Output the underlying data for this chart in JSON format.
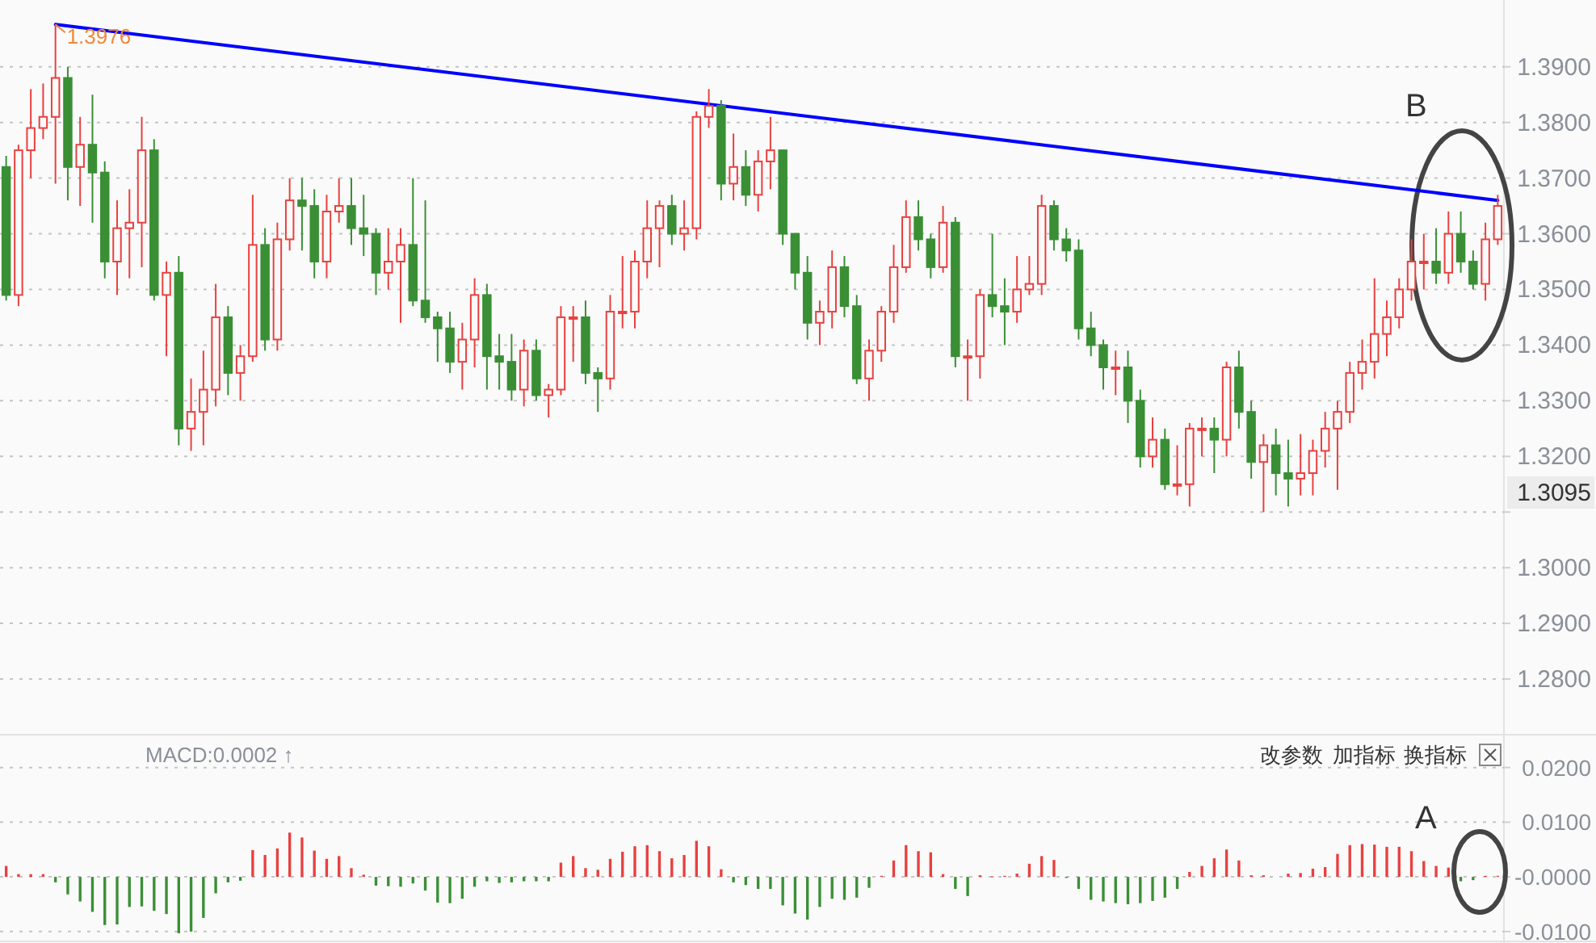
{
  "chart_data": [
    {
      "type": "candlestick",
      "tick_labels": "y",
      "grid": "y",
      "categories": [
        null,
        null,
        null,
        null,
        null,
        null,
        null,
        null,
        null,
        null,
        null,
        null,
        null,
        null,
        null,
        null,
        null,
        null,
        null,
        null,
        null,
        null,
        null,
        null,
        null,
        null,
        null,
        null,
        null,
        null,
        null,
        null,
        null,
        null,
        null,
        null,
        null,
        null,
        null,
        null,
        null,
        null,
        null,
        null,
        null,
        null,
        null,
        null,
        null,
        null,
        null,
        null,
        null,
        null,
        null,
        null,
        null,
        null,
        null,
        null,
        null,
        null,
        null,
        null,
        null,
        null,
        null,
        null,
        null,
        null,
        null,
        null,
        null,
        null,
        null,
        null,
        null,
        null,
        null,
        null,
        null,
        null,
        null,
        null,
        null,
        null,
        null,
        null,
        null,
        null,
        null,
        null,
        null,
        null,
        null,
        null,
        null,
        null,
        null,
        null,
        null,
        null,
        null,
        null,
        null,
        null,
        null,
        null,
        null,
        null,
        null,
        null,
        null,
        null,
        null,
        null,
        null,
        null,
        null,
        null,
        null,
        null
      ],
      "colors": [
        "#3a8f35",
        "#e8413f",
        "#e8413f",
        "#e8413f",
        "#e8413f",
        "#3a8f35",
        "#e8413f",
        "#3a8f35",
        "#3a8f35",
        "#e8413f",
        "#e8413f",
        "#e8413f",
        "#3a8f35",
        "#e8413f",
        "#3a8f35",
        "#e8413f",
        "#e8413f",
        "#e8413f",
        "#3a8f35",
        "#e8413f",
        "#e8413f",
        "#3a8f35",
        "#e8413f",
        "#e8413f",
        "#3a8f35",
        "#3a8f35",
        "#e8413f",
        "#e8413f",
        "#3a8f35",
        "#3a8f35",
        "#3a8f35",
        "#e8413f",
        "#e8413f",
        "#3a8f35",
        "#3a8f35",
        "#3a8f35",
        "#3a8f35",
        "#e8413f",
        "#e8413f",
        "#3a8f35",
        "#3a8f35",
        "#3a8f35",
        "#e8413f",
        "#3a8f35",
        "#e8413f",
        "#e8413f",
        "#e8413f",
        "#3a8f35",
        "#3a8f35",
        "#e8413f",
        "#e8413f",
        "#e8413f",
        "#e8413f",
        "#e8413f",
        "#3a8f35",
        "#e8413f",
        "#e8413f",
        "#e8413f",
        "#3a8f35",
        "#e8413f",
        "#3a8f35",
        "#e8413f",
        "#e8413f",
        "#3a8f35",
        "#3a8f35",
        "#3a8f35",
        "#e8413f",
        "#e8413f",
        "#3a8f35",
        "#3a8f35",
        "#e8413f",
        "#e8413f",
        "#e8413f",
        "#e8413f",
        "#3a8f35",
        "#3a8f35",
        "#e8413f",
        "#3a8f35",
        "#e8413f",
        "#e8413f",
        "#3a8f35",
        "#3a8f35",
        "#e8413f",
        "#e8413f",
        "#e8413f",
        "#3a8f35",
        "#3a8f35",
        "#3a8f35",
        "#3a8f35",
        "#3a8f35",
        "#e8413f",
        "#3a8f35",
        "#3a8f35",
        "#e8413f",
        "#3a8f35",
        "#e8413f",
        "#e8413f",
        "#e8413f",
        "#3a8f35",
        "#e8413f",
        "#3a8f35",
        "#3a8f35",
        "#e8413f",
        "#3a8f35",
        "#3a8f35",
        "#e8413f",
        "#e8413f",
        "#e8413f",
        "#e8413f",
        "#e8413f",
        "#e8413f",
        "#e8413f",
        "#e8413f",
        "#e8413f",
        "#e8413f",
        "#e8413f",
        "#3a8f35",
        "#e8413f",
        "#3a8f35",
        "#3a8f35",
        "#e8413f",
        "#e8413f"
      ],
      "ylim": [
        1.27,
        1.402
      ],
      "yticks": [
        {
          "value": 1.28,
          "label": "1.2800"
        },
        {
          "value": 1.29,
          "label": "1.2900"
        },
        {
          "value": 1.3,
          "label": "1.3000"
        },
        {
          "value": 1.31,
          "label": null
        },
        {
          "value": 1.32,
          "label": "1.3200"
        },
        {
          "value": 1.33,
          "label": "1.3300"
        },
        {
          "value": 1.34,
          "label": "1.3400"
        },
        {
          "value": 1.35,
          "label": "1.3500"
        },
        {
          "value": 1.36,
          "label": "1.3600"
        },
        {
          "value": 1.37,
          "label": "1.3700"
        },
        {
          "value": 1.38,
          "label": "1.3800"
        },
        {
          "value": 1.39,
          "label": "1.3900"
        }
      ],
      "ohlc": [
        [
          1.372,
          1.374,
          1.348,
          1.349
        ],
        [
          1.349,
          1.376,
          1.347,
          1.375
        ],
        [
          1.375,
          1.386,
          1.37,
          1.379
        ],
        [
          1.379,
          1.387,
          1.377,
          1.381
        ],
        [
          1.381,
          1.3976,
          1.369,
          1.388
        ],
        [
          1.388,
          1.39,
          1.366,
          1.372
        ],
        [
          1.372,
          1.381,
          1.365,
          1.376
        ],
        [
          1.376,
          1.385,
          1.362,
          1.371
        ],
        [
          1.371,
          1.373,
          1.352,
          1.355
        ],
        [
          1.355,
          1.366,
          1.349,
          1.361
        ],
        [
          1.361,
          1.368,
          1.352,
          1.362
        ],
        [
          1.362,
          1.381,
          1.354,
          1.375
        ],
        [
          1.375,
          1.377,
          1.348,
          1.349
        ],
        [
          1.349,
          1.355,
          1.338,
          1.353
        ],
        [
          1.353,
          1.356,
          1.322,
          1.325
        ],
        [
          1.325,
          1.334,
          1.321,
          1.328
        ],
        [
          1.328,
          1.339,
          1.322,
          1.332
        ],
        [
          1.332,
          1.351,
          1.329,
          1.345
        ],
        [
          1.345,
          1.347,
          1.331,
          1.335
        ],
        [
          1.335,
          1.34,
          1.33,
          1.338
        ],
        [
          1.338,
          1.367,
          1.337,
          1.358
        ],
        [
          1.358,
          1.361,
          1.339,
          1.341
        ],
        [
          1.341,
          1.362,
          1.339,
          1.359
        ],
        [
          1.359,
          1.37,
          1.357,
          1.366
        ],
        [
          1.366,
          1.37,
          1.357,
          1.365
        ],
        [
          1.365,
          1.368,
          1.352,
          1.355
        ],
        [
          1.355,
          1.367,
          1.352,
          1.364
        ],
        [
          1.364,
          1.37,
          1.362,
          1.365
        ],
        [
          1.365,
          1.37,
          1.358,
          1.361
        ],
        [
          1.361,
          1.367,
          1.356,
          1.36
        ],
        [
          1.36,
          1.361,
          1.349,
          1.353
        ],
        [
          1.353,
          1.361,
          1.35,
          1.355
        ],
        [
          1.355,
          1.361,
          1.344,
          1.358
        ],
        [
          1.358,
          1.37,
          1.347,
          1.348
        ],
        [
          1.348,
          1.366,
          1.344,
          1.345
        ],
        [
          1.345,
          1.346,
          1.337,
          1.343
        ],
        [
          1.343,
          1.346,
          1.335,
          1.337
        ],
        [
          1.337,
          1.344,
          1.332,
          1.341
        ],
        [
          1.341,
          1.352,
          1.336,
          1.349
        ],
        [
          1.349,
          1.351,
          1.332,
          1.338
        ],
        [
          1.338,
          1.342,
          1.332,
          1.337
        ],
        [
          1.337,
          1.342,
          1.33,
          1.332
        ],
        [
          1.332,
          1.341,
          1.329,
          1.339
        ],
        [
          1.339,
          1.341,
          1.33,
          1.331
        ],
        [
          1.331,
          1.333,
          1.327,
          1.332
        ],
        [
          1.332,
          1.347,
          1.331,
          1.345
        ],
        [
          1.345,
          1.347,
          1.337,
          1.345
        ],
        [
          1.345,
          1.348,
          1.333,
          1.335
        ],
        [
          1.335,
          1.336,
          1.328,
          1.334
        ],
        [
          1.334,
          1.349,
          1.332,
          1.346
        ],
        [
          1.346,
          1.356,
          1.343,
          1.346
        ],
        [
          1.346,
          1.357,
          1.343,
          1.355
        ],
        [
          1.355,
          1.366,
          1.352,
          1.361
        ],
        [
          1.361,
          1.366,
          1.354,
          1.365
        ],
        [
          1.365,
          1.367,
          1.358,
          1.36
        ],
        [
          1.36,
          1.366,
          1.357,
          1.361
        ],
        [
          1.361,
          1.382,
          1.359,
          1.381
        ],
        [
          1.381,
          1.386,
          1.379,
          1.383
        ],
        [
          1.383,
          1.384,
          1.366,
          1.369
        ],
        [
          1.369,
          1.378,
          1.366,
          1.372
        ],
        [
          1.372,
          1.375,
          1.365,
          1.367
        ],
        [
          1.367,
          1.375,
          1.364,
          1.373
        ],
        [
          1.373,
          1.381,
          1.368,
          1.375
        ],
        [
          1.375,
          1.375,
          1.358,
          1.36
        ],
        [
          1.36,
          1.36,
          1.35,
          1.353
        ],
        [
          1.353,
          1.356,
          1.341,
          1.344
        ],
        [
          1.344,
          1.348,
          1.34,
          1.346
        ],
        [
          1.346,
          1.357,
          1.343,
          1.354
        ],
        [
          1.354,
          1.356,
          1.345,
          1.347
        ],
        [
          1.347,
          1.349,
          1.333,
          1.334
        ],
        [
          1.334,
          1.341,
          1.33,
          1.339
        ],
        [
          1.339,
          1.347,
          1.337,
          1.346
        ],
        [
          1.346,
          1.358,
          1.344,
          1.354
        ],
        [
          1.354,
          1.366,
          1.353,
          1.363
        ],
        [
          1.363,
          1.366,
          1.357,
          1.359
        ],
        [
          1.359,
          1.36,
          1.352,
          1.354
        ],
        [
          1.354,
          1.365,
          1.353,
          1.362
        ],
        [
          1.362,
          1.363,
          1.336,
          1.338
        ],
        [
          1.338,
          1.341,
          1.33,
          1.338
        ],
        [
          1.338,
          1.35,
          1.334,
          1.349
        ],
        [
          1.349,
          1.36,
          1.345,
          1.347
        ],
        [
          1.347,
          1.352,
          1.34,
          1.346
        ],
        [
          1.346,
          1.356,
          1.344,
          1.35
        ],
        [
          1.35,
          1.356,
          1.349,
          1.351
        ],
        [
          1.351,
          1.367,
          1.349,
          1.365
        ],
        [
          1.365,
          1.366,
          1.357,
          1.359
        ],
        [
          1.359,
          1.361,
          1.355,
          1.357
        ],
        [
          1.357,
          1.359,
          1.341,
          1.343
        ],
        [
          1.343,
          1.346,
          1.338,
          1.34
        ],
        [
          1.34,
          1.341,
          1.332,
          1.336
        ],
        [
          1.336,
          1.339,
          1.331,
          1.336
        ],
        [
          1.336,
          1.339,
          1.326,
          1.33
        ],
        [
          1.33,
          1.332,
          1.318,
          1.32
        ],
        [
          1.32,
          1.327,
          1.318,
          1.323
        ],
        [
          1.323,
          1.325,
          1.314,
          1.315
        ],
        [
          1.315,
          1.322,
          1.313,
          1.315
        ],
        [
          1.315,
          1.326,
          1.311,
          1.325
        ],
        [
          1.325,
          1.327,
          1.32,
          1.325
        ],
        [
          1.325,
          1.327,
          1.317,
          1.323
        ],
        [
          1.323,
          1.337,
          1.32,
          1.336
        ],
        [
          1.336,
          1.339,
          1.325,
          1.328
        ],
        [
          1.328,
          1.33,
          1.316,
          1.319
        ],
        [
          1.319,
          1.324,
          1.31,
          1.322
        ],
        [
          1.322,
          1.325,
          1.313,
          1.317
        ],
        [
          1.317,
          1.323,
          1.311,
          1.316
        ],
        [
          1.316,
          1.324,
          1.313,
          1.317
        ],
        [
          1.317,
          1.323,
          1.313,
          1.321
        ],
        [
          1.321,
          1.328,
          1.318,
          1.325
        ],
        [
          1.325,
          1.33,
          1.314,
          1.328
        ],
        [
          1.328,
          1.337,
          1.326,
          1.335
        ],
        [
          1.335,
          1.341,
          1.332,
          1.337
        ],
        [
          1.337,
          1.352,
          1.334,
          1.342
        ],
        [
          1.342,
          1.348,
          1.338,
          1.345
        ],
        [
          1.345,
          1.352,
          1.343,
          1.35
        ],
        [
          1.35,
          1.359,
          1.348,
          1.355
        ],
        [
          1.355,
          1.36,
          1.35,
          1.355
        ],
        [
          1.355,
          1.361,
          1.351,
          1.353
        ],
        [
          1.353,
          1.364,
          1.351,
          1.36
        ],
        [
          1.36,
          1.364,
          1.353,
          1.355
        ],
        [
          1.355,
          1.357,
          1.35,
          1.351
        ],
        [
          1.351,
          1.362,
          1.348,
          1.359
        ],
        [
          1.359,
          1.367,
          1.358,
          1.365
        ]
      ],
      "series": [
        {
          "type": "line",
          "color": "#0000ff",
          "values": [
            null,
            null,
            null,
            null,
            1.3976,
            null,
            null,
            null,
            null,
            null,
            null,
            null,
            null,
            null,
            null,
            null,
            null,
            null,
            null,
            null,
            null,
            null,
            null,
            null,
            null,
            null,
            null,
            null,
            null,
            null,
            null,
            null,
            null,
            null,
            null,
            null,
            null,
            null,
            null,
            null,
            null,
            null,
            null,
            null,
            null,
            null,
            null,
            null,
            null,
            null,
            null,
            null,
            null,
            null,
            null,
            null,
            null,
            null,
            null,
            null,
            null,
            null,
            null,
            null,
            null,
            null,
            null,
            null,
            null,
            null,
            null,
            null,
            null,
            null,
            null,
            null,
            null,
            null,
            null,
            null,
            null,
            null,
            null,
            null,
            null,
            null,
            null,
            null,
            null,
            null,
            null,
            null,
            null,
            null,
            null,
            null,
            null,
            null,
            null,
            null,
            null,
            null,
            null,
            null,
            null,
            null,
            null,
            null,
            null,
            null,
            null,
            null,
            null,
            null,
            null,
            null,
            null,
            null,
            null,
            null,
            null,
            1.366
          ]
        }
      ],
      "annotations": [
        {
          "text": "1.3976",
          "y": 1.3976
        },
        "B",
        "1.3095"
      ]
    },
    {
      "type": "bar",
      "tick_labels": "y",
      "grid": "y",
      "categories": [
        null,
        null,
        null,
        null,
        null,
        null,
        null,
        null,
        null,
        null,
        null,
        null,
        null,
        null,
        null,
        null,
        null,
        null,
        null,
        null,
        null,
        null,
        null,
        null,
        null,
        null,
        null,
        null,
        null,
        null,
        null,
        null,
        null,
        null,
        null,
        null,
        null,
        null,
        null,
        null,
        null,
        null,
        null,
        null,
        null,
        null,
        null,
        null,
        null,
        null,
        null,
        null,
        null,
        null,
        null,
        null,
        null,
        null,
        null,
        null,
        null,
        null,
        null,
        null,
        null,
        null,
        null,
        null,
        null,
        null,
        null,
        null,
        null,
        null,
        null,
        null,
        null,
        null,
        null,
        null,
        null,
        null,
        null,
        null,
        null,
        null,
        null,
        null,
        null,
        null,
        null,
        null,
        null,
        null,
        null,
        null,
        null,
        null,
        null,
        null,
        null,
        null,
        null,
        null,
        null,
        null,
        null,
        null,
        null,
        null,
        null,
        null,
        null,
        null,
        null,
        null,
        null,
        null,
        null,
        null,
        null,
        null
      ],
      "ylim": [
        -0.0115,
        0.026
      ],
      "yticks": [
        {
          "value": -0.01,
          "label": "-0.0100"
        },
        {
          "value": 0,
          "label": "-0.0000"
        },
        {
          "value": 0.01,
          "label": "0.0100"
        },
        {
          "value": 0.02,
          "label": "0.0200"
        }
      ],
      "values": [
        0.002,
        0.0005,
        0.0005,
        0.0005,
        -0.001,
        -0.0032,
        -0.0045,
        -0.0064,
        -0.0088,
        -0.0087,
        -0.0055,
        -0.0054,
        -0.0062,
        -0.0068,
        -0.0103,
        -0.01,
        -0.0075,
        -0.003,
        -0.001,
        -0.0007,
        0.0049,
        0.004,
        0.0052,
        0.0081,
        0.0072,
        0.0048,
        0.0033,
        0.0038,
        0.0016,
        0.0004,
        -0.0016,
        -0.0017,
        -0.0018,
        -0.0012,
        -0.0025,
        -0.0047,
        -0.0048,
        -0.004,
        -0.0018,
        -0.0008,
        -0.0011,
        -0.001,
        -0.0008,
        -0.0008,
        -0.0008,
        0.0026,
        0.0038,
        0.0016,
        0.0013,
        0.0033,
        0.0046,
        0.0056,
        0.0058,
        0.0047,
        0.0034,
        0.004,
        0.0066,
        0.0056,
        0.0014,
        -0.001,
        -0.0015,
        -0.0022,
        -0.0022,
        -0.0052,
        -0.0067,
        -0.0078,
        -0.0055,
        -0.004,
        -0.0042,
        -0.0038,
        -0.002,
        0.0002,
        0.003,
        0.0058,
        0.0047,
        0.0045,
        0.0005,
        -0.0022,
        -0.0035,
        0.0003,
        0.0001,
        0.0002,
        0.0006,
        0.0024,
        0.0038,
        0.0031,
        -0.0002,
        -0.0022,
        -0.0042,
        -0.0045,
        -0.0048,
        -0.005,
        -0.0048,
        -0.0044,
        -0.0038,
        -0.0022,
        0.0009,
        0.002,
        0.0034,
        0.005,
        0.003,
        0.0003,
        0.0003,
        null,
        0.0006,
        0.0007,
        0.0015,
        0.0018,
        0.0042,
        0.0058,
        0.006,
        0.0059,
        0.0055,
        0.0055,
        0.0047,
        0.0029,
        0.002,
        0.0017,
        -0.0008,
        -0.0006,
        0.0002,
        0.0002
      ],
      "colors": [
        "#e8413f",
        "#e8413f",
        "#e8413f",
        "#e8413f",
        "#3a8f35",
        "#3a8f35",
        "#3a8f35",
        "#3a8f35",
        "#3a8f35",
        "#3a8f35",
        "#3a8f35",
        "#3a8f35",
        "#3a8f35",
        "#3a8f35",
        "#3a8f35",
        "#3a8f35",
        "#3a8f35",
        "#3a8f35",
        "#3a8f35",
        "#3a8f35",
        "#e8413f",
        "#e8413f",
        "#e8413f",
        "#e8413f",
        "#e8413f",
        "#e8413f",
        "#e8413f",
        "#e8413f",
        "#e8413f",
        "#e8413f",
        "#3a8f35",
        "#3a8f35",
        "#3a8f35",
        "#3a8f35",
        "#3a8f35",
        "#3a8f35",
        "#3a8f35",
        "#3a8f35",
        "#3a8f35",
        "#3a8f35",
        "#3a8f35",
        "#3a8f35",
        "#3a8f35",
        "#3a8f35",
        "#3a8f35",
        "#e8413f",
        "#e8413f",
        "#e8413f",
        "#e8413f",
        "#e8413f",
        "#e8413f",
        "#e8413f",
        "#e8413f",
        "#e8413f",
        "#e8413f",
        "#e8413f",
        "#e8413f",
        "#e8413f",
        "#e8413f",
        "#3a8f35",
        "#3a8f35",
        "#3a8f35",
        "#3a8f35",
        "#3a8f35",
        "#3a8f35",
        "#3a8f35",
        "#3a8f35",
        "#3a8f35",
        "#3a8f35",
        "#3a8f35",
        "#3a8f35",
        "#e8413f",
        "#e8413f",
        "#e8413f",
        "#e8413f",
        "#e8413f",
        "#e8413f",
        "#3a8f35",
        "#3a8f35",
        "#e8413f",
        "#e8413f",
        "#e8413f",
        "#e8413f",
        "#e8413f",
        "#e8413f",
        "#e8413f",
        "#3a8f35",
        "#3a8f35",
        "#3a8f35",
        "#3a8f35",
        "#3a8f35",
        "#3a8f35",
        "#3a8f35",
        "#3a8f35",
        "#3a8f35",
        "#3a8f35",
        "#e8413f",
        "#e8413f",
        "#e8413f",
        "#e8413f",
        "#e8413f",
        "#e8413f",
        "#e8413f",
        null,
        "#e8413f",
        "#e8413f",
        "#e8413f",
        "#e8413f",
        "#e8413f",
        "#e8413f",
        "#e8413f",
        "#e8413f",
        "#e8413f",
        "#e8413f",
        "#e8413f",
        "#e8413f",
        "#e8413f",
        "#e8413f",
        "#3a8f35",
        "#3a8f35",
        "#e8413f",
        "#e8413f"
      ],
      "annotations": [
        "MACD:0.0002 ↑",
        "改参数",
        "加指标",
        "换指标",
        "A"
      ]
    }
  ]
}
